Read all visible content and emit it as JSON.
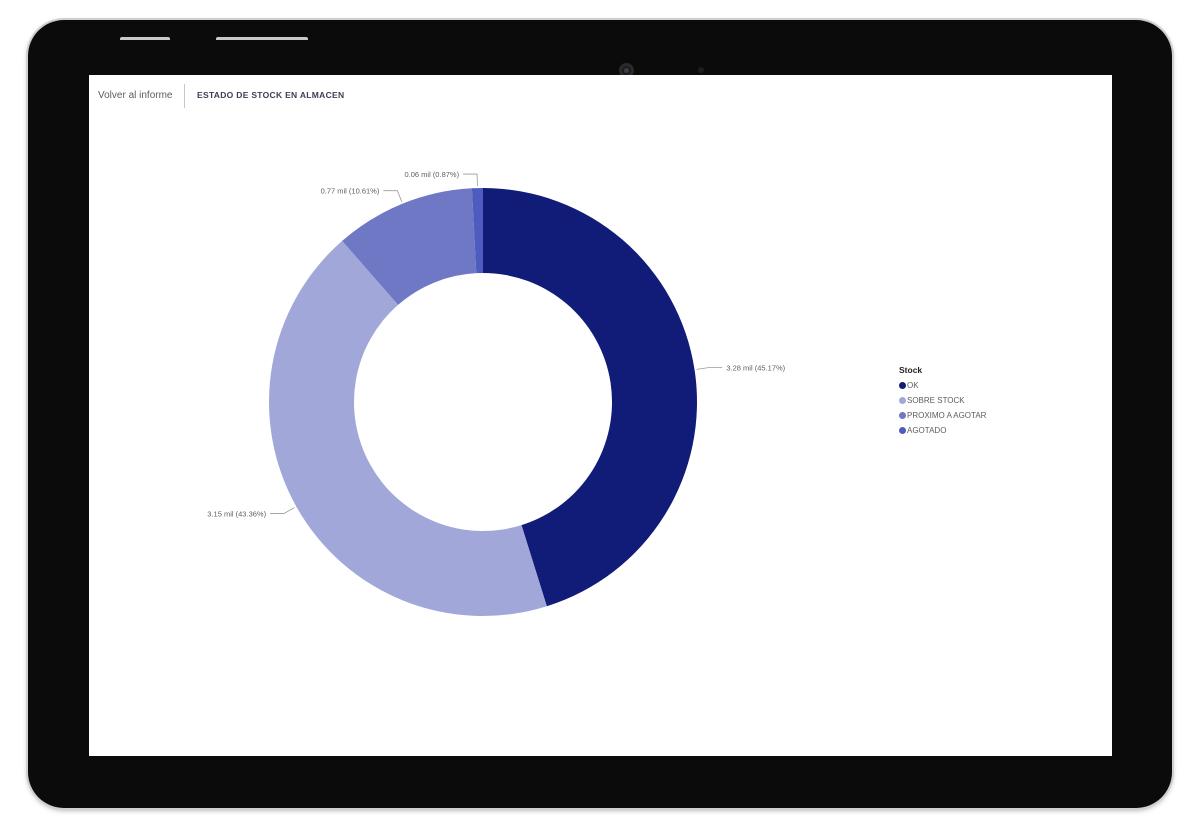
{
  "report": {
    "back_label": "Volver al informe",
    "title": "ESTADO DE STOCK EN ALMACEN"
  },
  "legend": {
    "title": "Stock"
  },
  "chart_data": {
    "type": "pie",
    "subtype": "donut",
    "title": "",
    "legend_title": "Stock",
    "legend_position": "right",
    "categories": [
      "OK",
      "SOBRE STOCK",
      "PROXIMO A AGOTAR",
      "AGOTADO"
    ],
    "values": [
      3.28,
      3.15,
      0.77,
      0.06
    ],
    "unit": "mil",
    "percentages": [
      45.17,
      43.36,
      10.61,
      0.87
    ],
    "data_labels": [
      "3.28 mil (45.17%)",
      "3.15 mil (43.36%)",
      "0.77 mil (10.61%)",
      "0.06 mil (0.87%)"
    ],
    "colors": [
      "#111b78",
      "#a1a8d9",
      "#6f78c4",
      "#4e5bbf"
    ]
  }
}
